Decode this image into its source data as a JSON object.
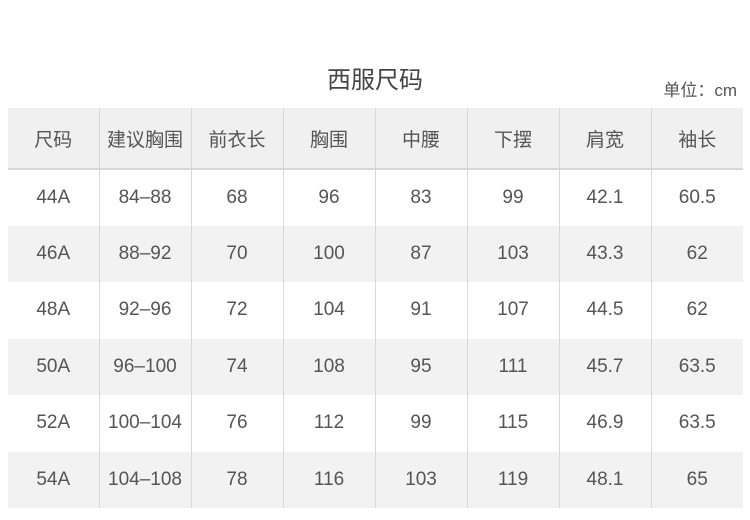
{
  "title": "西服尺码",
  "unit": "单位：cm",
  "table": {
    "headers": [
      "尺码",
      "建议胸围",
      "前衣长",
      "胸围",
      "中腰",
      "下摆",
      "肩宽",
      "袖长"
    ],
    "rows": [
      [
        "44A",
        "84–88",
        "68",
        "96",
        "83",
        "99",
        "42.1",
        "60.5"
      ],
      [
        "46A",
        "88–92",
        "70",
        "100",
        "87",
        "103",
        "43.3",
        "62"
      ],
      [
        "48A",
        "92–96",
        "72",
        "104",
        "91",
        "107",
        "44.5",
        "62"
      ],
      [
        "50A",
        "96–100",
        "74",
        "108",
        "95",
        "111",
        "45.7",
        "63.5"
      ],
      [
        "52A",
        "100–104",
        "76",
        "112",
        "99",
        "115",
        "46.9",
        "63.5"
      ],
      [
        "54A",
        "104–108",
        "78",
        "116",
        "103",
        "119",
        "48.1",
        "65"
      ]
    ]
  }
}
